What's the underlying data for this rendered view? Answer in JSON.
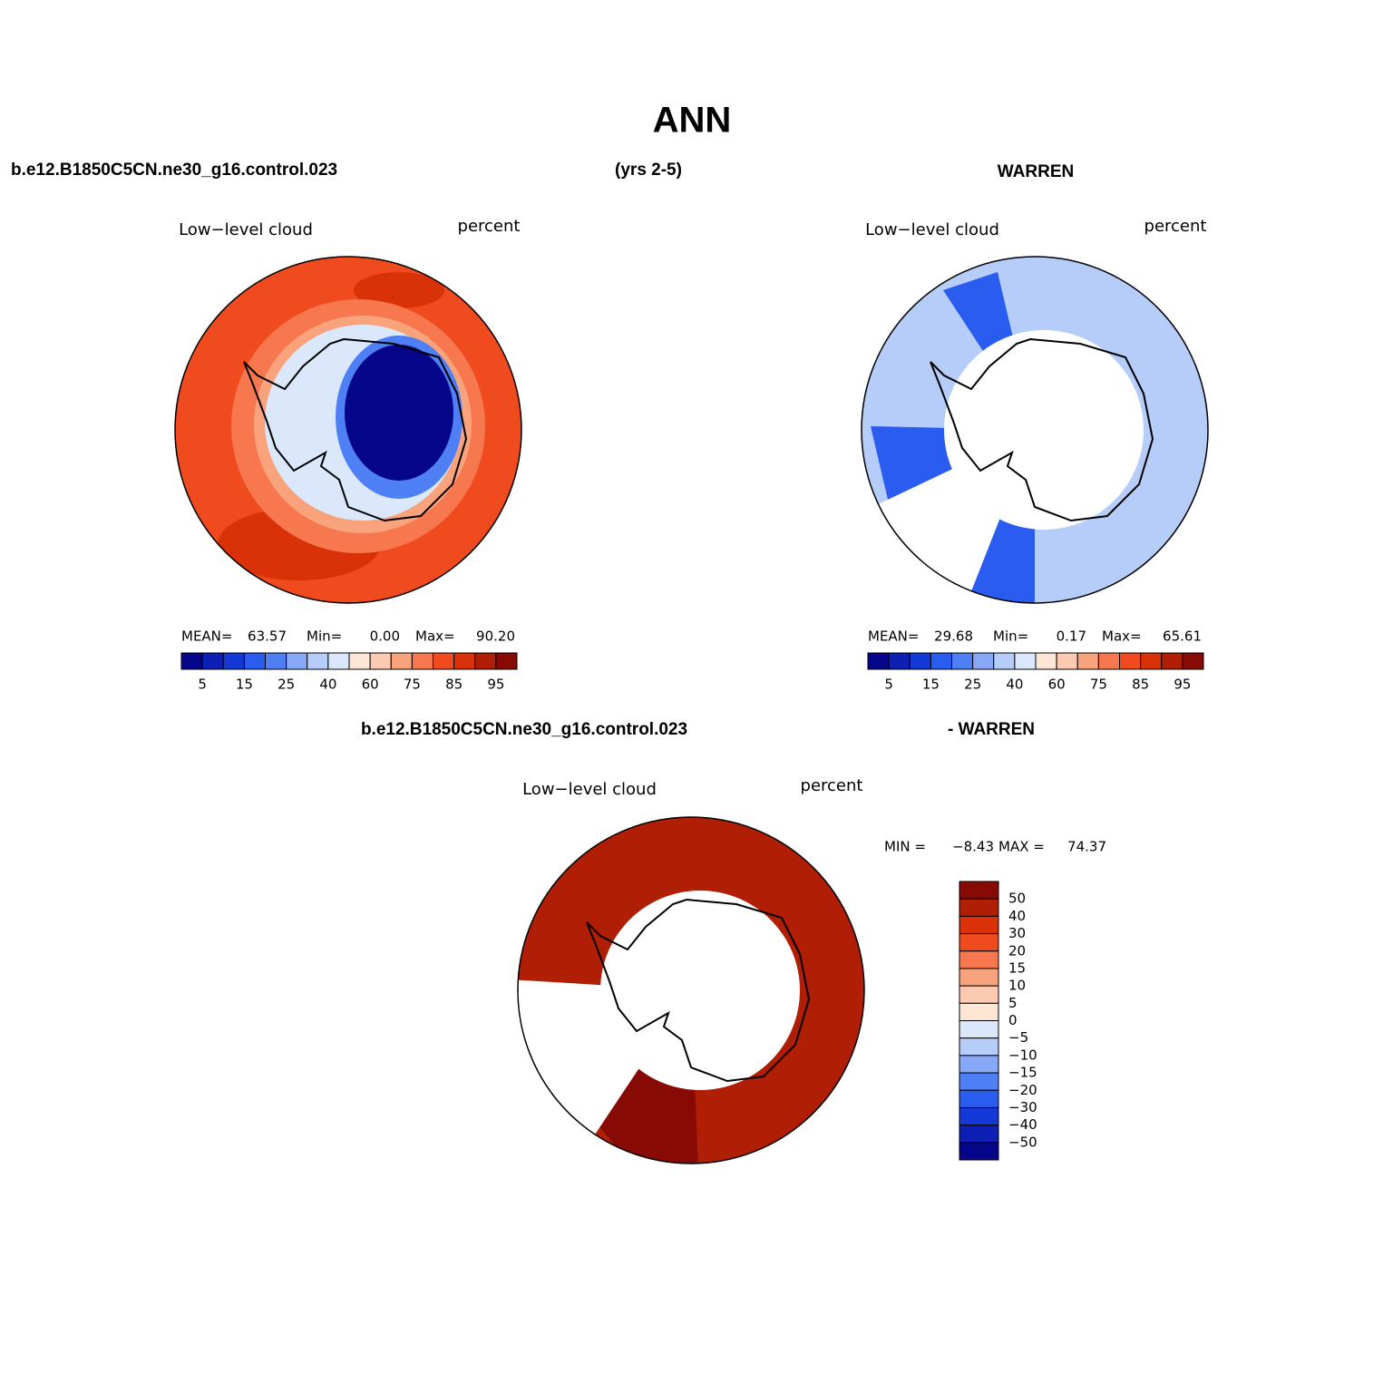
{
  "title": "ANN",
  "header": {
    "left": "b.e12.B1850C5CN.ne30_g16.control.023",
    "center": "(yrs 2-5)",
    "right": "WARREN"
  },
  "panels": [
    {
      "left_label": "Low−level cloud",
      "right_label": "percent",
      "stats": [
        {
          "label": "MEAN=",
          "value": "63.57"
        },
        {
          "label": "Min=",
          "value": "0.00"
        },
        {
          "label": "Max=",
          "value": "90.20"
        }
      ],
      "colorbar": {
        "colors": [
          "#06068a",
          "#0d1fb5",
          "#1439d6",
          "#2a5cf0",
          "#4f7ff5",
          "#86a8f7",
          "#b6cdfa",
          "#dbe8fb",
          "#fde6d6",
          "#fccab0",
          "#f9a37d",
          "#f7784f",
          "#f04b1e",
          "#d93209",
          "#b01e05",
          "#870a04"
        ],
        "labels": [
          "5",
          "15",
          "25",
          "40",
          "60",
          "75",
          "85",
          "95"
        ]
      }
    },
    {
      "left_label": "Low−level cloud",
      "right_label": "percent",
      "stats": [
        {
          "label": "MEAN=",
          "value": "29.68"
        },
        {
          "label": "Min=",
          "value": "0.17"
        },
        {
          "label": "Max=",
          "value": "65.61"
        }
      ],
      "colorbar": {
        "colors": [
          "#06068a",
          "#0d1fb5",
          "#1439d6",
          "#2a5cf0",
          "#4f7ff5",
          "#86a8f7",
          "#b6cdfa",
          "#dbe8fb",
          "#fde6d6",
          "#fccab0",
          "#f9a37d",
          "#f7784f",
          "#f04b1e",
          "#d93209",
          "#b01e05",
          "#870a04"
        ],
        "labels": [
          "5",
          "15",
          "25",
          "40",
          "60",
          "75",
          "85",
          "95"
        ]
      }
    }
  ],
  "diff_header": {
    "left": "b.e12.B1850C5CN.ne30_g16.control.023",
    "right": "- WARREN"
  },
  "diff_panel": {
    "left_label": "Low−level cloud",
    "right_label": "percent",
    "min_label": "MIN =",
    "min": "−8.43",
    "max_label": "MAX =",
    "max": "74.37",
    "colorbar": {
      "colors": [
        "#870a04",
        "#b01e05",
        "#d93209",
        "#f04b1e",
        "#f7784f",
        "#f9a37d",
        "#fccab0",
        "#fde6d6",
        "#dbe8fb",
        "#b6cdfa",
        "#86a8f7",
        "#4f7ff5",
        "#2a5cf0",
        "#1439d6",
        "#0d1fb5",
        "#06068a"
      ],
      "labels": [
        "50",
        "40",
        "30",
        "20",
        "15",
        "10",
        "5",
        "0",
        "−5",
        "−10",
        "−15",
        "−20",
        "−30",
        "−40",
        "−50"
      ]
    }
  }
}
